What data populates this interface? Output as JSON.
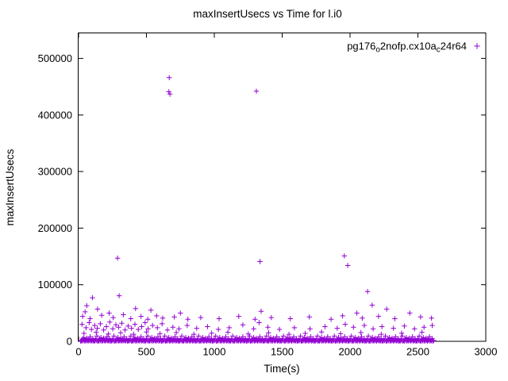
{
  "window": {
    "background": "#ffffff"
  },
  "chart_data": {
    "type": "scatter",
    "title": "maxInsertUsecs vs Time for l.i0",
    "xlabel": "Time(s)",
    "ylabel": "maxInsertUsecs",
    "xlim": [
      0,
      3000
    ],
    "ylim": [
      0,
      545000
    ],
    "xticks": [
      0,
      500,
      1000,
      1500,
      2000,
      2500,
      3000
    ],
    "yticks": [
      0,
      100000,
      200000,
      300000,
      400000,
      500000
    ],
    "grid": false,
    "marker": "plus",
    "color": "#9400d3",
    "legend": {
      "position": "top-right-inside",
      "series_label": "pg176_o2nofp.cx10a_c24r64",
      "label_segments": [
        {
          "text": "pg176",
          "sub": false
        },
        {
          "text": "o",
          "sub": true
        },
        {
          "text": "2nofp.cx10a",
          "sub": false
        },
        {
          "text": "c",
          "sub": true
        },
        {
          "text": "24r64",
          "sub": false
        }
      ]
    },
    "series": [
      {
        "name": "pg176_o2nofp.cx10a_c24r64",
        "points": [
          [
            668,
            466000
          ],
          [
            665,
            441000
          ],
          [
            673,
            437000
          ],
          [
            1310,
            442000
          ],
          [
            287,
            147000
          ],
          [
            1337,
            141000
          ],
          [
            1958,
            151000
          ],
          [
            1983,
            134000
          ],
          [
            60,
            63000
          ],
          [
            102,
            77000
          ],
          [
            299,
            80500
          ],
          [
            2129,
            88000
          ],
          [
            2163,
            64000
          ],
          [
            48,
            52000
          ],
          [
            140,
            57000
          ],
          [
            225,
            50000
          ],
          [
            420,
            58000
          ],
          [
            533,
            55000
          ],
          [
            750,
            50000
          ],
          [
            1345,
            53000
          ],
          [
            2050,
            50000
          ],
          [
            2270,
            57000
          ],
          [
            2440,
            50000
          ],
          [
            30,
            44000
          ],
          [
            85,
            40000
          ],
          [
            170,
            46000
          ],
          [
            255,
            42000
          ],
          [
            330,
            47000
          ],
          [
            385,
            40000
          ],
          [
            460,
            44000
          ],
          [
            510,
            39000
          ],
          [
            575,
            45000
          ],
          [
            620,
            41000
          ],
          [
            705,
            43000
          ],
          [
            805,
            39000
          ],
          [
            900,
            42000
          ],
          [
            1035,
            40000
          ],
          [
            1180,
            44000
          ],
          [
            1300,
            39000
          ],
          [
            1420,
            42000
          ],
          [
            1560,
            40000
          ],
          [
            1700,
            43000
          ],
          [
            1860,
            39000
          ],
          [
            1945,
            45000
          ],
          [
            2090,
            41000
          ],
          [
            2210,
            44000
          ],
          [
            2330,
            40000
          ],
          [
            2520,
            43000
          ],
          [
            2600,
            41000
          ],
          [
            25,
            30000
          ],
          [
            55,
            24000
          ],
          [
            78,
            33000
          ],
          [
            95,
            21000
          ],
          [
            118,
            28000
          ],
          [
            138,
            23000
          ],
          [
            160,
            31000
          ],
          [
            185,
            20000
          ],
          [
            205,
            26000
          ],
          [
            230,
            34000
          ],
          [
            252,
            22000
          ],
          [
            275,
            29000
          ],
          [
            295,
            25000
          ],
          [
            318,
            32000
          ],
          [
            342,
            20000
          ],
          [
            365,
            27000
          ],
          [
            390,
            23000
          ],
          [
            415,
            30000
          ],
          [
            440,
            21000
          ],
          [
            465,
            26000
          ],
          [
            490,
            33000
          ],
          [
            512,
            22000
          ],
          [
            545,
            28000
          ],
          [
            580,
            24000
          ],
          [
            615,
            31000
          ],
          [
            655,
            20000
          ],
          [
            695,
            25000
          ],
          [
            740,
            22000
          ],
          [
            800,
            28000
          ],
          [
            870,
            23000
          ],
          [
            950,
            26000
          ],
          [
            1030,
            21000
          ],
          [
            1110,
            24000
          ],
          [
            1210,
            29000
          ],
          [
            1290,
            22000
          ],
          [
            1330,
            33000
          ],
          [
            1395,
            25000
          ],
          [
            1480,
            21000
          ],
          [
            1590,
            24000
          ],
          [
            1705,
            22000
          ],
          [
            1815,
            26000
          ],
          [
            1905,
            23000
          ],
          [
            1965,
            30000
          ],
          [
            2025,
            25000
          ],
          [
            2105,
            28000
          ],
          [
            2170,
            22000
          ],
          [
            2235,
            26000
          ],
          [
            2320,
            23000
          ],
          [
            2400,
            27000
          ],
          [
            2475,
            22000
          ],
          [
            2545,
            25000
          ],
          [
            2605,
            28000
          ],
          [
            40,
            14000
          ],
          [
            130,
            16000
          ],
          [
            220,
            13000
          ],
          [
            310,
            15000
          ],
          [
            405,
            12500
          ],
          [
            500,
            16500
          ],
          [
            600,
            13500
          ],
          [
            720,
            15500
          ],
          [
            850,
            12500
          ],
          [
            980,
            14500
          ],
          [
            1100,
            16000
          ],
          [
            1250,
            13000
          ],
          [
            1400,
            15000
          ],
          [
            1550,
            12500
          ],
          [
            1670,
            14000
          ],
          [
            1790,
            16500
          ],
          [
            1930,
            13500
          ],
          [
            2080,
            15500
          ],
          [
            2230,
            12500
          ],
          [
            2380,
            14500
          ],
          [
            2530,
            16000
          ]
        ],
        "baseline_band": {
          "note": "dense band of samples hugging y≈0 across the whole run (values estimated)",
          "x_start": 15,
          "x_end": 2615,
          "x_step": 5,
          "y_cycle": [
            300,
            1500,
            700,
            4200,
            1100,
            6800,
            400,
            2300,
            900,
            5500,
            1800,
            350,
            3000,
            1300,
            8200,
            600,
            2000,
            1000,
            4800,
            250,
            1600,
            750,
            3600,
            1200,
            9300
          ]
        }
      }
    ]
  }
}
